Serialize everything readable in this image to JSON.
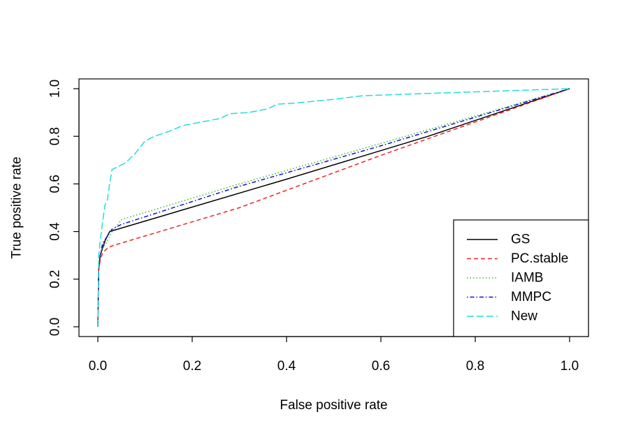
{
  "chart_data": {
    "type": "line",
    "title": "",
    "xlabel": "False positive rate",
    "ylabel": "True positive rate",
    "xlim": [
      0,
      1
    ],
    "ylim": [
      0,
      1
    ],
    "x_ticks": [
      0,
      0.2,
      0.4,
      0.6,
      0.8,
      1
    ],
    "y_ticks": [
      0,
      0.2,
      0.4,
      0.6,
      0.8,
      1
    ],
    "x_tick_labels": [
      "0.0",
      "0.2",
      "0.4",
      "0.6",
      "0.8",
      "1.0"
    ],
    "y_tick_labels": [
      "0.0",
      "0.2",
      "0.4",
      "0.6",
      "0.8",
      "1.0"
    ],
    "grid": false,
    "legend_position": "bottom-right",
    "series": [
      {
        "name": "GS",
        "color": "#000000",
        "dash": "solid",
        "x": [
          0,
          0.002,
          0.005,
          0.01,
          0.015,
          0.02,
          0.025,
          0.4,
          0.7,
          1
        ],
        "y": [
          0,
          0.25,
          0.3,
          0.33,
          0.36,
          0.38,
          0.4,
          0.62,
          0.8,
          1
        ]
      },
      {
        "name": "PC.stable",
        "color": "#ee2222",
        "dash": "dashed",
        "x": [
          0,
          0.002,
          0.005,
          0.01,
          0.02,
          0.03,
          0.3,
          0.6,
          1
        ],
        "y": [
          0,
          0.24,
          0.28,
          0.31,
          0.33,
          0.34,
          0.5,
          0.72,
          1
        ]
      },
      {
        "name": "IAMB",
        "color": "#33bb33",
        "dash": "dotted",
        "x": [
          0,
          0.002,
          0.005,
          0.01,
          0.02,
          0.03,
          0.05,
          0.3,
          0.6,
          1
        ],
        "y": [
          0,
          0.26,
          0.3,
          0.33,
          0.36,
          0.4,
          0.45,
          0.6,
          0.77,
          1
        ]
      },
      {
        "name": "MMPC",
        "color": "#1111cc",
        "dash": "dotdash",
        "x": [
          0,
          0.002,
          0.005,
          0.01,
          0.02,
          0.03,
          0.05,
          0.3,
          0.6,
          1
        ],
        "y": [
          0,
          0.24,
          0.3,
          0.35,
          0.38,
          0.41,
          0.43,
          0.59,
          0.76,
          1
        ]
      },
      {
        "name": "New",
        "color": "#22dddd",
        "dash": "longdash",
        "x": [
          0,
          0.002,
          0.005,
          0.01,
          0.015,
          0.02,
          0.025,
          0.03,
          0.04,
          0.06,
          0.08,
          0.1,
          0.12,
          0.15,
          0.18,
          0.22,
          0.26,
          0.28,
          0.32,
          0.36,
          0.38,
          0.42,
          0.5,
          0.56,
          0.7,
          0.85,
          1
        ],
        "y": [
          0,
          0.3,
          0.36,
          0.44,
          0.51,
          0.53,
          0.6,
          0.66,
          0.67,
          0.69,
          0.73,
          0.78,
          0.8,
          0.82,
          0.845,
          0.86,
          0.875,
          0.895,
          0.9,
          0.915,
          0.935,
          0.94,
          0.955,
          0.97,
          0.98,
          0.99,
          1
        ]
      }
    ]
  }
}
